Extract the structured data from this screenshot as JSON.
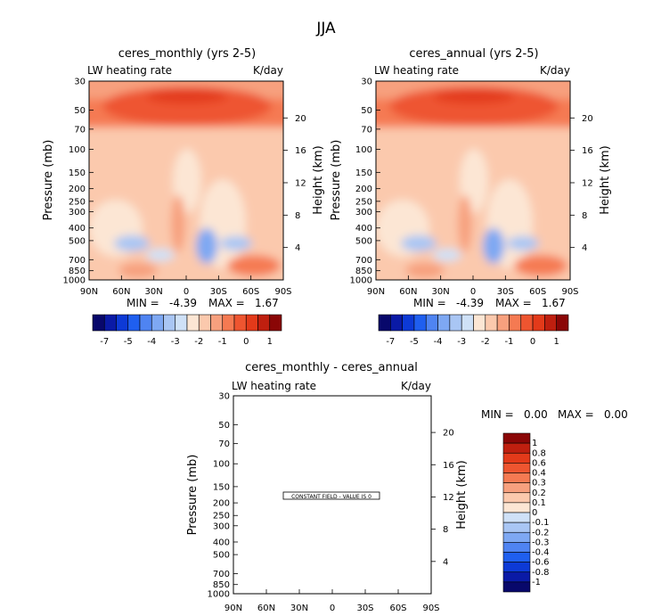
{
  "page_title": "JJA",
  "cb_colors_top": [
    "#08086b",
    "#0a1aa6",
    "#0d3ad6",
    "#1f5fef",
    "#4f84f2",
    "#7ea8f3",
    "#a9c6f4",
    "#cfe1f7",
    "#fce6d4",
    "#fbc9ad",
    "#f7a07e",
    "#f57a52",
    "#ee5530",
    "#e33a1a",
    "#bf1f0f",
    "#8a0606"
  ],
  "cb_colors_diff": [
    "#08086b",
    "#0a1aa6",
    "#0d3ad6",
    "#1f5fef",
    "#4f84f2",
    "#7ea8f3",
    "#a9c6f4",
    "#cfe1f7",
    "#fce6d4",
    "#fbc9ad",
    "#f7a07e",
    "#f57a52",
    "#ee5530",
    "#e33a1a",
    "#bf1f0f",
    "#8a0606"
  ],
  "chart_data": [
    {
      "type": "heatmap",
      "title": "ceres_monthly (yrs 2-5)",
      "variable_label": "LW heating rate",
      "units_label": "K/day",
      "ylabel": "Pressure (mb)",
      "ylabel_right": "Height (km)",
      "pressure_ticks": [
        "30",
        "50",
        "70",
        "100",
        "150",
        "200",
        "250",
        "300",
        "400",
        "500",
        "700",
        "850",
        "1000"
      ],
      "height_ticks": [
        "20",
        "16",
        "12",
        "8",
        "4"
      ],
      "x_ticks": [
        "90N",
        "60N",
        "30N",
        "0",
        "30S",
        "60S",
        "90S"
      ],
      "min_label": "MIN =",
      "min_value": "-4.39",
      "max_label": "MAX =",
      "max_value": "1.67",
      "colorbar_labels": [
        "-7",
        "-5",
        "-4",
        "-3",
        "-2",
        "-1",
        "0",
        "1"
      ]
    },
    {
      "type": "heatmap",
      "title": "ceres_annual (yrs 2-5)",
      "variable_label": "LW heating rate",
      "units_label": "K/day",
      "ylabel": "Pressure (mb)",
      "ylabel_right": "Height (km)",
      "pressure_ticks": [
        "30",
        "50",
        "70",
        "100",
        "150",
        "200",
        "250",
        "300",
        "400",
        "500",
        "700",
        "850",
        "1000"
      ],
      "height_ticks": [
        "20",
        "16",
        "12",
        "8",
        "4"
      ],
      "x_ticks": [
        "90N",
        "60N",
        "30N",
        "0",
        "30S",
        "60S",
        "90S"
      ],
      "min_label": "MIN =",
      "min_value": "-4.39",
      "max_label": "MAX =",
      "max_value": "1.67",
      "colorbar_labels": [
        "-7",
        "-5",
        "-4",
        "-3",
        "-2",
        "-1",
        "0",
        "1"
      ]
    },
    {
      "type": "heatmap",
      "title": "ceres_monthly - ceres_annual",
      "variable_label": "LW heating rate",
      "units_label": "K/day",
      "ylabel": "Pressure (mb)",
      "ylabel_right": "Height (km)",
      "pressure_ticks": [
        "30",
        "50",
        "70",
        "100",
        "150",
        "200",
        "250",
        "300",
        "400",
        "500",
        "700",
        "850",
        "1000"
      ],
      "height_ticks": [
        "20",
        "16",
        "12",
        "8",
        "4"
      ],
      "x_ticks": [
        "90N",
        "60N",
        "30N",
        "0",
        "30S",
        "60S",
        "90S"
      ],
      "min_label": "MIN =",
      "min_value": "0.00",
      "max_label": "MAX =",
      "max_value": "0.00",
      "constant_field_text": "CONSTANT FIELD - VALUE IS 0",
      "colorbar_labels": [
        "1",
        "0.8",
        "0.6",
        "0.4",
        "0.3",
        "0.2",
        "0.1",
        "0",
        "-0.1",
        "-0.2",
        "-0.3",
        "-0.4",
        "-0.6",
        "-0.8",
        "-1"
      ]
    }
  ]
}
